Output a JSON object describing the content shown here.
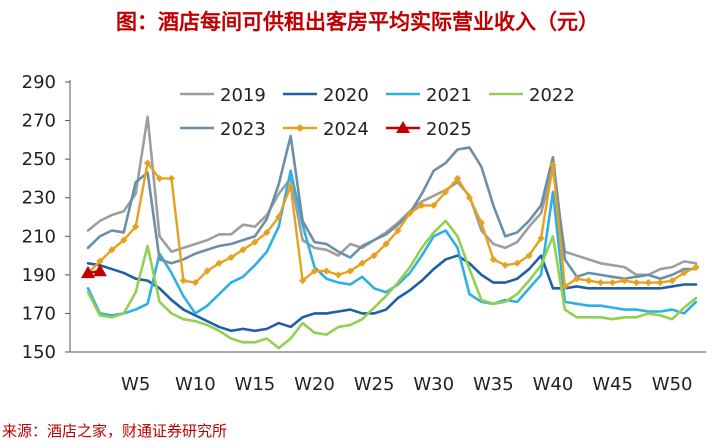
{
  "title": "图：酒店每间可供租出客房平均实际营业收入（元）",
  "source": "来源：酒店之家，财通证券研究所",
  "chart_data": {
    "type": "line",
    "title": "图：酒店每间可供租出客房平均实际营业收入（元）",
    "xlabel": "",
    "ylabel": "",
    "ylim": [
      150,
      290
    ],
    "yticks": [
      150,
      170,
      190,
      210,
      230,
      250,
      270,
      290
    ],
    "xlim": [
      1,
      52
    ],
    "xticks": [
      {
        "x": 5,
        "label": "W5"
      },
      {
        "x": 10,
        "label": "W10"
      },
      {
        "x": 15,
        "label": "W15"
      },
      {
        "x": 20,
        "label": "W20"
      },
      {
        "x": 25,
        "label": "W25"
      },
      {
        "x": 30,
        "label": "W30"
      },
      {
        "x": 35,
        "label": "W35"
      },
      {
        "x": 40,
        "label": "W40"
      },
      {
        "x": 45,
        "label": "W45"
      },
      {
        "x": 50,
        "label": "W50"
      }
    ],
    "grid": false,
    "legend_position": "top",
    "series": [
      {
        "name": "2019",
        "color": "#9e9e9e",
        "marker": "none",
        "values": [
          213,
          218,
          221,
          223,
          232,
          272,
          210,
          202,
          204,
          206,
          208,
          211,
          211,
          216,
          215,
          221,
          232,
          240,
          208,
          204,
          203,
          200,
          206,
          204,
          208,
          212,
          217,
          223,
          228,
          231,
          234,
          238,
          231,
          213,
          206,
          204,
          207,
          215,
          222,
          245,
          202,
          200,
          198,
          196,
          195,
          194,
          190,
          190,
          193,
          194,
          197,
          196
        ]
      },
      {
        "name": "2020",
        "color": "#1f5fa5",
        "marker": "none",
        "values": [
          196,
          195,
          193,
          191,
          188,
          187,
          183,
          177,
          172,
          169,
          166,
          163,
          161,
          162,
          161,
          162,
          165,
          163,
          168,
          170,
          170,
          171,
          172,
          170,
          170,
          172,
          178,
          182,
          187,
          193,
          198,
          200,
          196,
          190,
          186,
          186,
          188,
          193,
          200,
          183,
          183,
          184,
          183,
          183,
          183,
          183,
          183,
          183,
          183,
          184,
          185,
          185
        ]
      },
      {
        "name": "2021",
        "color": "#2eb0e4",
        "marker": "none",
        "values": [
          183,
          170,
          169,
          170,
          172,
          175,
          201,
          191,
          179,
          170,
          174,
          180,
          186,
          189,
          195,
          202,
          215,
          244,
          216,
          194,
          188,
          186,
          185,
          189,
          183,
          181,
          185,
          191,
          200,
          210,
          213,
          204,
          180,
          176,
          175,
          177,
          176,
          183,
          190,
          233,
          176,
          175,
          174,
          174,
          173,
          172,
          172,
          171,
          171,
          172,
          170,
          176
        ]
      },
      {
        "name": "2022",
        "color": "#92d050",
        "marker": "none",
        "values": [
          181,
          169,
          168,
          170,
          181,
          205,
          176,
          170,
          167,
          166,
          164,
          161,
          157,
          155,
          155,
          157,
          152,
          157,
          165,
          160,
          159,
          163,
          164,
          167,
          173,
          179,
          186,
          194,
          204,
          212,
          218,
          210,
          193,
          177,
          175,
          176,
          180,
          187,
          195,
          210,
          172,
          168,
          168,
          168,
          167,
          168,
          168,
          170,
          169,
          167,
          173,
          178
        ]
      },
      {
        "name": "2023",
        "color": "#6c8fa8",
        "marker": "none",
        "values": [
          204,
          210,
          213,
          212,
          238,
          243,
          198,
          196,
          198,
          201,
          203,
          205,
          206,
          208,
          210,
          219,
          237,
          262,
          218,
          207,
          206,
          202,
          199,
          205,
          208,
          211,
          216,
          222,
          232,
          244,
          248,
          255,
          256,
          246,
          226,
          210,
          212,
          218,
          226,
          251,
          198,
          189,
          191,
          190,
          189,
          188,
          189,
          190,
          188,
          190,
          193,
          193
        ]
      },
      {
        "name": "2024",
        "color": "#e5a21f",
        "marker": "diamond",
        "values": [
          191,
          197,
          203,
          208,
          215,
          248,
          240,
          240,
          187,
          186,
          192,
          196,
          199,
          203,
          207,
          212,
          220,
          236,
          187,
          192,
          192,
          190,
          192,
          196,
          200,
          206,
          213,
          222,
          226,
          226,
          233,
          240,
          230,
          217,
          198,
          195,
          196,
          200,
          209,
          247,
          184,
          188,
          187,
          186,
          186,
          187,
          186,
          186,
          186,
          187,
          191,
          194
        ]
      },
      {
        "name": "2025",
        "color": "#c00000",
        "marker": "triangle",
        "values": [
          191,
          192
        ]
      }
    ]
  }
}
